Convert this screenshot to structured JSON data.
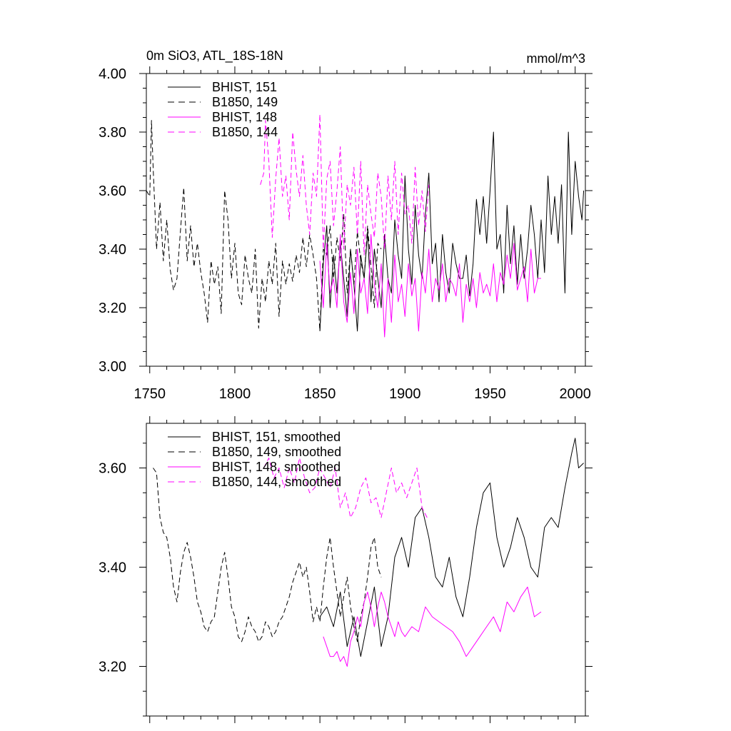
{
  "chart_data": [
    {
      "type": "line",
      "title": "0m SiO3, ATL_18S-18N",
      "units": "mmol/m^3",
      "xlim": [
        1748,
        2006
      ],
      "ylim": [
        3.0,
        4.0
      ],
      "x_ticks": [
        1750,
        1800,
        1850,
        1900,
        1950,
        2000
      ],
      "x_tick_labels": [
        "1750",
        "1800",
        "1850",
        "1900",
        "1950",
        "2000"
      ],
      "y_ticks": [
        3.0,
        3.2,
        3.4,
        3.6,
        3.8,
        4.0
      ],
      "y_tick_labels": [
        "3.00",
        "3.20",
        "3.40",
        "3.60",
        "3.80",
        "4.00"
      ],
      "legend_position": "top-left",
      "series": [
        {
          "name": "BHIST, 151",
          "color": "#000000",
          "dash": "solid",
          "x": [
            1850,
            1852,
            1854,
            1856,
            1858,
            1860,
            1862,
            1864,
            1866,
            1868,
            1870,
            1872,
            1874,
            1876,
            1878,
            1880,
            1882,
            1884,
            1886,
            1888,
            1890,
            1892,
            1894,
            1896,
            1898,
            1900,
            1902,
            1904,
            1906,
            1908,
            1910,
            1912,
            1914,
            1916,
            1918,
            1920,
            1922,
            1924,
            1926,
            1928,
            1930,
            1932,
            1934,
            1936,
            1938,
            1940,
            1942,
            1944,
            1946,
            1948,
            1950,
            1952,
            1954,
            1956,
            1958,
            1960,
            1962,
            1964,
            1966,
            1968,
            1970,
            1972,
            1974,
            1976,
            1978,
            1980,
            1982,
            1984,
            1986,
            1988,
            1990,
            1992,
            1994,
            1996,
            1998,
            2000,
            2002,
            2004,
            2005
          ],
          "y": [
            3.12,
            3.35,
            3.48,
            3.2,
            3.38,
            3.25,
            3.42,
            3.3,
            3.17,
            3.4,
            3.28,
            3.12,
            3.38,
            3.3,
            3.46,
            3.22,
            3.4,
            3.3,
            3.2,
            3.45,
            3.3,
            3.25,
            3.5,
            3.38,
            3.3,
            3.65,
            3.4,
            3.28,
            3.55,
            3.38,
            3.3,
            3.52,
            3.66,
            3.35,
            3.42,
            3.22,
            3.45,
            3.32,
            3.25,
            3.42,
            3.35,
            3.3,
            3.3,
            3.38,
            3.24,
            3.35,
            3.57,
            3.45,
            3.58,
            3.42,
            3.6,
            3.8,
            3.4,
            3.45,
            3.25,
            3.55,
            3.35,
            3.48,
            3.28,
            3.45,
            3.3,
            3.4,
            3.55,
            3.45,
            3.3,
            3.5,
            3.32,
            3.65,
            3.45,
            3.58,
            3.42,
            3.62,
            3.25,
            3.8,
            3.45,
            3.7,
            3.58,
            3.5,
            3.6
          ]
        },
        {
          "name": "B1850, 149",
          "color": "#000000",
          "dash": "dashed",
          "x": [
            1748,
            1750,
            1751,
            1752,
            1754,
            1756,
            1758,
            1760,
            1762,
            1764,
            1766,
            1768,
            1770,
            1772,
            1774,
            1776,
            1778,
            1780,
            1782,
            1784,
            1786,
            1788,
            1790,
            1792,
            1794,
            1796,
            1798,
            1800,
            1802,
            1804,
            1806,
            1808,
            1810,
            1812,
            1814,
            1816,
            1818,
            1820,
            1822,
            1824,
            1826,
            1828,
            1830,
            1832,
            1834,
            1836,
            1838,
            1840,
            1842,
            1844,
            1846,
            1848,
            1850,
            1852,
            1854,
            1856,
            1858,
            1860,
            1862,
            1864,
            1866,
            1868,
            1870,
            1872,
            1874,
            1876,
            1878,
            1880,
            1882,
            1884,
            1886
          ],
          "y": [
            3.6,
            3.58,
            3.84,
            3.68,
            3.4,
            3.56,
            3.36,
            3.5,
            3.33,
            3.26,
            3.3,
            3.46,
            3.61,
            3.36,
            3.48,
            3.34,
            3.42,
            3.32,
            3.25,
            3.15,
            3.36,
            3.28,
            3.34,
            3.18,
            3.6,
            3.5,
            3.3,
            3.42,
            3.25,
            3.21,
            3.38,
            3.3,
            3.25,
            3.4,
            3.13,
            3.3,
            3.22,
            3.36,
            3.28,
            3.42,
            3.17,
            3.36,
            3.28,
            3.35,
            3.29,
            3.38,
            3.32,
            3.44,
            3.34,
            3.45,
            3.38,
            3.3,
            3.12,
            3.4,
            3.38,
            3.48,
            3.3,
            3.44,
            3.36,
            3.52,
            3.25,
            3.4,
            3.28,
            3.46,
            3.36,
            3.3,
            3.48,
            3.34,
            3.2,
            3.42,
            3.4
          ]
        },
        {
          "name": "BHIST, 148",
          "color": "#ff00ff",
          "dash": "solid",
          "x": [
            1850,
            1852,
            1854,
            1856,
            1858,
            1860,
            1862,
            1864,
            1866,
            1868,
            1870,
            1872,
            1874,
            1876,
            1878,
            1880,
            1882,
            1884,
            1886,
            1888,
            1890,
            1892,
            1894,
            1896,
            1898,
            1900,
            1902,
            1904,
            1906,
            1908,
            1910,
            1912,
            1914,
            1916,
            1918,
            1920,
            1922,
            1924,
            1926,
            1928,
            1930,
            1932,
            1934,
            1936,
            1938,
            1940,
            1942,
            1944,
            1946,
            1948,
            1950,
            1952,
            1954,
            1956,
            1958,
            1960,
            1962,
            1964,
            1966,
            1968,
            1970,
            1972,
            1974,
            1976,
            1978,
            1980
          ],
          "y": [
            3.36,
            3.2,
            3.42,
            3.25,
            3.3,
            3.2,
            3.45,
            3.22,
            3.15,
            3.32,
            3.18,
            3.4,
            3.25,
            3.3,
            3.18,
            3.45,
            3.28,
            3.2,
            3.35,
            3.1,
            3.3,
            3.15,
            3.38,
            3.22,
            3.28,
            3.17,
            3.35,
            3.24,
            3.3,
            3.12,
            3.32,
            3.25,
            3.4,
            3.22,
            3.3,
            3.26,
            3.35,
            3.22,
            3.3,
            3.28,
            3.24,
            3.35,
            3.15,
            3.28,
            3.22,
            3.3,
            3.2,
            3.32,
            3.25,
            3.28,
            3.24,
            3.35,
            3.22,
            3.32,
            3.28,
            3.38,
            3.3,
            3.42,
            3.26,
            3.3,
            3.34,
            3.22,
            3.4,
            3.25,
            3.3,
            3.3
          ]
        },
        {
          "name": "B1850, 144",
          "color": "#ff00ff",
          "dash": "dashed",
          "x": [
            1815,
            1817,
            1818,
            1820,
            1822,
            1824,
            1826,
            1828,
            1830,
            1832,
            1834,
            1836,
            1838,
            1840,
            1842,
            1844,
            1846,
            1848,
            1850,
            1852,
            1854,
            1856,
            1858,
            1860,
            1862,
            1864,
            1866,
            1868,
            1870,
            1872,
            1874,
            1876,
            1878,
            1880,
            1882,
            1884,
            1886,
            1888,
            1890,
            1892,
            1894,
            1896,
            1898,
            1900,
            1902,
            1904,
            1906,
            1908,
            1910,
            1912,
            1914
          ],
          "y": [
            3.62,
            3.66,
            3.84,
            3.7,
            3.44,
            3.64,
            3.78,
            3.58,
            3.65,
            3.5,
            3.8,
            3.67,
            3.58,
            3.72,
            3.55,
            3.45,
            3.66,
            3.58,
            3.86,
            3.4,
            3.64,
            3.7,
            3.48,
            3.6,
            3.75,
            3.4,
            3.62,
            3.55,
            3.68,
            3.45,
            3.7,
            3.38,
            3.62,
            3.52,
            3.44,
            3.66,
            3.58,
            3.4,
            3.65,
            3.5,
            3.7,
            3.45,
            3.66,
            3.52,
            3.55,
            3.42,
            3.68,
            3.48,
            3.6,
            3.46,
            3.62
          ]
        }
      ]
    },
    {
      "type": "line",
      "xlim": [
        1748,
        2006
      ],
      "ylim": [
        3.1,
        3.69
      ],
      "x_ticks": [
        1750,
        1800,
        1850,
        1900,
        1950,
        2000
      ],
      "y_ticks": [
        3.2,
        3.4,
        3.6
      ],
      "y_tick_labels": [
        "3.20",
        "3.40",
        "3.60"
      ],
      "legend_position": "top-left",
      "series": [
        {
          "name": "BHIST, 151, smoothed",
          "color": "#000000",
          "dash": "solid",
          "x": [
            1850,
            1854,
            1858,
            1862,
            1866,
            1870,
            1874,
            1878,
            1882,
            1886,
            1890,
            1894,
            1898,
            1902,
            1906,
            1910,
            1914,
            1918,
            1922,
            1926,
            1930,
            1934,
            1938,
            1942,
            1946,
            1950,
            1954,
            1958,
            1962,
            1966,
            1970,
            1974,
            1978,
            1982,
            1986,
            1990,
            1994,
            1998,
            2000,
            2002,
            2005
          ],
          "y": [
            3.3,
            3.32,
            3.28,
            3.35,
            3.24,
            3.3,
            3.22,
            3.29,
            3.36,
            3.24,
            3.3,
            3.42,
            3.46,
            3.4,
            3.5,
            3.52,
            3.46,
            3.38,
            3.36,
            3.42,
            3.34,
            3.3,
            3.38,
            3.48,
            3.55,
            3.57,
            3.46,
            3.4,
            3.44,
            3.5,
            3.46,
            3.4,
            3.38,
            3.48,
            3.5,
            3.48,
            3.56,
            3.63,
            3.66,
            3.6,
            3.61
          ]
        },
        {
          "name": "B1850, 149, smoothed",
          "color": "#000000",
          "dash": "dashed",
          "x": [
            1752,
            1754,
            1756,
            1758,
            1760,
            1762,
            1764,
            1766,
            1768,
            1770,
            1772,
            1774,
            1776,
            1778,
            1780,
            1782,
            1784,
            1786,
            1788,
            1790,
            1792,
            1794,
            1796,
            1798,
            1800,
            1802,
            1804,
            1806,
            1808,
            1810,
            1812,
            1814,
            1816,
            1818,
            1820,
            1822,
            1824,
            1826,
            1828,
            1830,
            1832,
            1834,
            1836,
            1838,
            1840,
            1842,
            1844,
            1846,
            1848,
            1850,
            1852,
            1854,
            1856,
            1858,
            1860,
            1862,
            1864,
            1866,
            1868,
            1870,
            1872,
            1874,
            1876,
            1878,
            1880,
            1882,
            1884,
            1886
          ],
          "y": [
            3.6,
            3.59,
            3.5,
            3.47,
            3.46,
            3.42,
            3.36,
            3.33,
            3.39,
            3.43,
            3.45,
            3.42,
            3.38,
            3.33,
            3.31,
            3.28,
            3.27,
            3.29,
            3.3,
            3.35,
            3.4,
            3.43,
            3.38,
            3.32,
            3.3,
            3.26,
            3.25,
            3.27,
            3.3,
            3.28,
            3.27,
            3.25,
            3.26,
            3.29,
            3.28,
            3.26,
            3.27,
            3.29,
            3.3,
            3.32,
            3.34,
            3.37,
            3.39,
            3.41,
            3.38,
            3.4,
            3.35,
            3.29,
            3.32,
            3.29,
            3.36,
            3.42,
            3.46,
            3.4,
            3.35,
            3.3,
            3.34,
            3.38,
            3.32,
            3.28,
            3.25,
            3.3,
            3.33,
            3.38,
            3.44,
            3.46,
            3.4,
            3.38
          ]
        },
        {
          "name": "BHIST, 148, smoothed",
          "color": "#ff00ff",
          "dash": "solid",
          "x": [
            1852,
            1854,
            1856,
            1858,
            1860,
            1862,
            1864,
            1866,
            1868,
            1870,
            1872,
            1874,
            1876,
            1878,
            1880,
            1882,
            1884,
            1886,
            1888,
            1890,
            1892,
            1894,
            1896,
            1898,
            1900,
            1904,
            1908,
            1912,
            1916,
            1920,
            1924,
            1928,
            1932,
            1936,
            1940,
            1944,
            1948,
            1952,
            1956,
            1960,
            1964,
            1968,
            1972,
            1976,
            1980
          ],
          "y": [
            3.26,
            3.24,
            3.22,
            3.22,
            3.23,
            3.21,
            3.22,
            3.2,
            3.25,
            3.27,
            3.3,
            3.28,
            3.33,
            3.35,
            3.32,
            3.28,
            3.32,
            3.35,
            3.33,
            3.3,
            3.28,
            3.26,
            3.29,
            3.27,
            3.26,
            3.28,
            3.27,
            3.32,
            3.3,
            3.29,
            3.28,
            3.27,
            3.25,
            3.22,
            3.24,
            3.26,
            3.28,
            3.3,
            3.27,
            3.33,
            3.31,
            3.34,
            3.36,
            3.3,
            3.31
          ]
        },
        {
          "name": "B1850, 144, smoothed",
          "color": "#ff00ff",
          "dash": "dashed",
          "x": [
            1817,
            1820,
            1823,
            1826,
            1829,
            1832,
            1835,
            1838,
            1841,
            1844,
            1847,
            1850,
            1853,
            1856,
            1859,
            1862,
            1865,
            1868,
            1871,
            1874,
            1877,
            1880,
            1883,
            1886,
            1889,
            1892,
            1895,
            1898,
            1901,
            1904,
            1907,
            1910,
            1913
          ],
          "y": [
            3.6,
            3.62,
            3.58,
            3.6,
            3.56,
            3.6,
            3.57,
            3.62,
            3.58,
            3.55,
            3.56,
            3.6,
            3.58,
            3.56,
            3.6,
            3.52,
            3.55,
            3.5,
            3.52,
            3.56,
            3.58,
            3.53,
            3.54,
            3.5,
            3.55,
            3.6,
            3.55,
            3.57,
            3.54,
            3.57,
            3.6,
            3.52,
            3.5
          ]
        }
      ]
    }
  ]
}
